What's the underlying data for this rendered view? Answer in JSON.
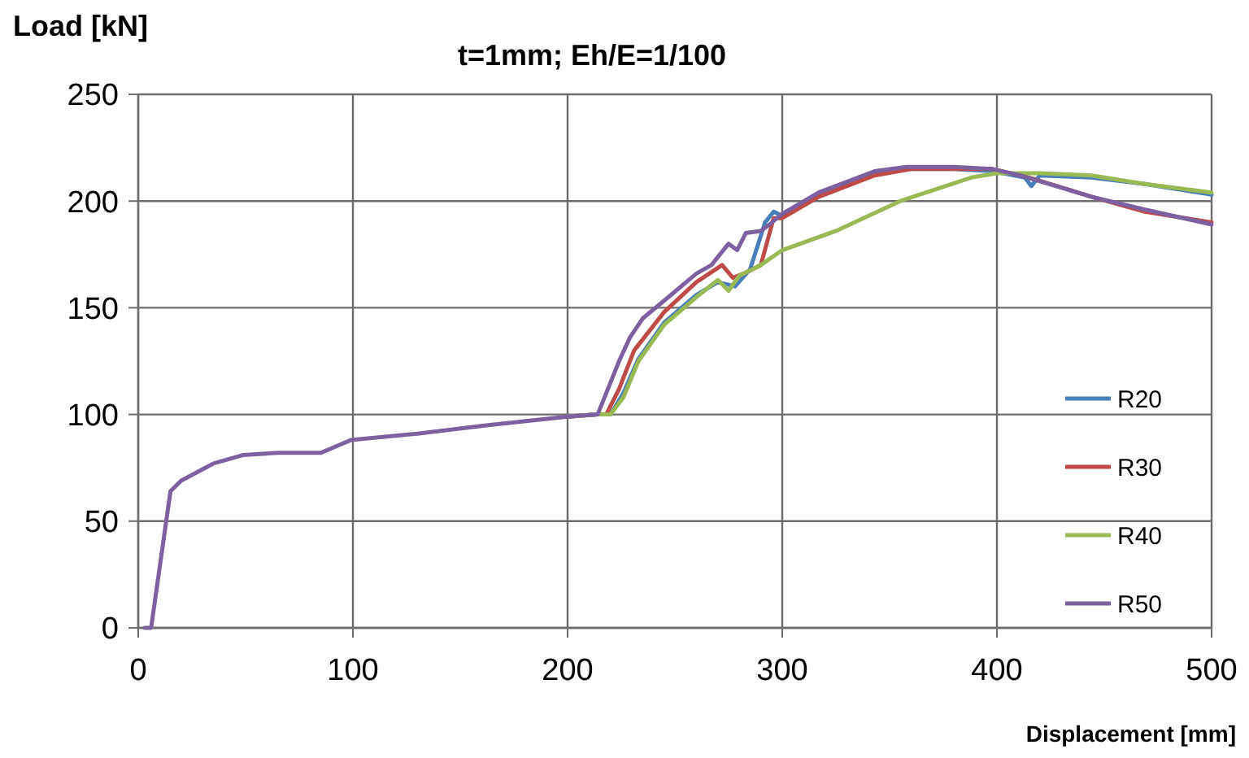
{
  "chart_data": {
    "type": "line",
    "title": "t=1mm; Eh/E=1/100",
    "xlabel": "Displacement [mm]",
    "ylabel": "Load [kN]",
    "xlim": [
      0,
      500
    ],
    "ylim": [
      0,
      250
    ],
    "xticks": [
      0,
      100,
      200,
      300,
      400,
      500
    ],
    "yticks": [
      0,
      50,
      100,
      150,
      200,
      250
    ],
    "grid": true,
    "legend": "right",
    "marker": "none",
    "line_style": "solid",
    "series": [
      {
        "name": "R20",
        "color": "#4a7ebb",
        "x": [
          200,
          214,
          220,
          226,
          233,
          245,
          260,
          270,
          278,
          285,
          292,
          296,
          300,
          317,
          343,
          360,
          380,
          398,
          413,
          416,
          420,
          444,
          469,
          500
        ],
        "values": [
          99,
          100,
          100,
          110,
          126,
          143,
          156,
          162,
          160,
          168,
          190,
          195,
          193,
          202,
          213,
          215,
          215,
          214,
          211,
          207,
          212,
          211,
          208,
          203
        ]
      },
      {
        "name": "R30",
        "color": "#be4b48",
        "x": [
          200,
          214,
          218,
          224,
          231,
          245,
          260,
          272,
          277,
          282,
          290,
          293,
          296,
          300,
          317,
          343,
          360,
          380,
          398,
          415,
          444,
          469,
          500
        ],
        "values": [
          99,
          100,
          100,
          112,
          130,
          148,
          162,
          170,
          164,
          166,
          170,
          181,
          192,
          192,
          202,
          212,
          215,
          215,
          215,
          211,
          202,
          195,
          190
        ]
      },
      {
        "name": "R40",
        "color": "#98b954",
        "x": [
          200,
          214,
          220,
          226,
          233,
          245,
          260,
          270,
          275,
          280,
          290,
          300,
          325,
          355,
          388,
          400,
          420,
          444,
          469,
          500
        ],
        "values": [
          99,
          100,
          100,
          108,
          125,
          142,
          155,
          163,
          158,
          165,
          170,
          177,
          186,
          200,
          211,
          213,
          213,
          212,
          208,
          204
        ]
      },
      {
        "name": "R50",
        "color": "#7d60a0",
        "x": [
          3,
          6,
          15,
          20,
          35,
          49,
          65,
          85,
          92,
          99,
          130,
          163,
          200,
          214,
          224,
          229,
          235,
          247,
          260,
          267,
          275,
          279,
          283,
          290,
          294,
          300,
          317,
          343,
          358,
          380,
          398,
          411,
          444,
          469,
          500
        ],
        "values": [
          0,
          0,
          64,
          69,
          77,
          81,
          82,
          82,
          85,
          88,
          91,
          95,
          99,
          100,
          125,
          136,
          145,
          155,
          166,
          170,
          180,
          177,
          185,
          186,
          189,
          194,
          204,
          214,
          216,
          216,
          215,
          212,
          202,
          196,
          189
        ]
      }
    ]
  }
}
